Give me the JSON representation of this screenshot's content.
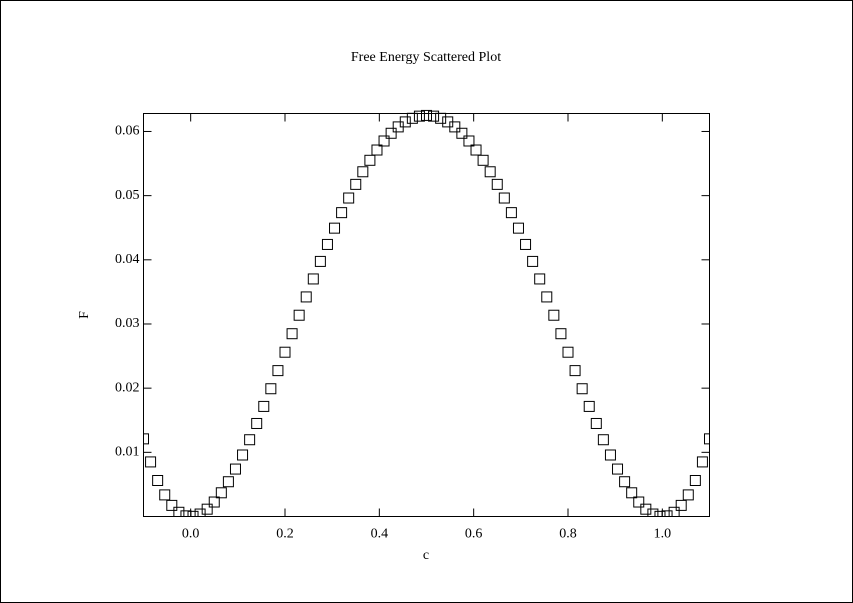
{
  "chart_data": {
    "type": "scatter",
    "title": "Free Energy Scattered Plot",
    "x_label": "c",
    "y_label": "F",
    "series": [
      {
        "name": "F",
        "color": "#000000",
        "x": [
          -0.1,
          -0.085,
          -0.07,
          -0.055,
          -0.04,
          -0.025,
          -0.01,
          0.005,
          0.02,
          0.035,
          0.05,
          0.065,
          0.08,
          0.095,
          0.11,
          0.125,
          0.14,
          0.155,
          0.17,
          0.185,
          0.2,
          0.215,
          0.23,
          0.245,
          0.26,
          0.275,
          0.29,
          0.305,
          0.32,
          0.335,
          0.35,
          0.365,
          0.38,
          0.395,
          0.41,
          0.425,
          0.44,
          0.455,
          0.47,
          0.485,
          0.5,
          0.515,
          0.53,
          0.545,
          0.56,
          0.575,
          0.59,
          0.605,
          0.62,
          0.635,
          0.65,
          0.665,
          0.68,
          0.695,
          0.71,
          0.725,
          0.74,
          0.755,
          0.77,
          0.785,
          0.8,
          0.815,
          0.83,
          0.845,
          0.86,
          0.875,
          0.89,
          0.905,
          0.92,
          0.935,
          0.95,
          0.965,
          0.98,
          0.995,
          1.01,
          1.025,
          1.04,
          1.055,
          1.07,
          1.085,
          1.1
        ],
        "values": [
          0.0121,
          0.008505,
          0.00561,
          0.003367,
          0.001731,
          0.000657,
          0.000102,
          2.48e-05,
          0.000384,
          0.001141,
          0.002256,
          0.003694,
          0.005417,
          0.007392,
          0.009584,
          0.011963,
          0.014496,
          0.017154,
          0.019909,
          0.022733,
          0.0256,
          0.028485,
          0.031364,
          0.034216,
          0.037018,
          0.03975,
          0.042395,
          0.044933,
          0.04735,
          0.049629,
          0.051756,
          0.05372,
          0.055507,
          0.057109,
          0.058516,
          0.059719,
          0.060713,
          0.061492,
          0.062051,
          0.062388,
          0.0625,
          0.062388,
          0.062051,
          0.061492,
          0.060713,
          0.059719,
          0.058516,
          0.057109,
          0.055507,
          0.05372,
          0.051756,
          0.049629,
          0.04735,
          0.044933,
          0.042395,
          0.03975,
          0.037018,
          0.034216,
          0.031364,
          0.028485,
          0.0256,
          0.022733,
          0.019909,
          0.017154,
          0.014496,
          0.011963,
          0.009584,
          0.007392,
          0.005417,
          0.003694,
          0.002256,
          0.001141,
          0.000384,
          2.48e-05,
          0.000102,
          0.000657,
          0.001731,
          0.003367,
          0.00561,
          0.008505,
          0.0121
        ]
      }
    ],
    "xlim": [
      -0.1,
      1.1
    ],
    "ylim": [
      0,
      0.0628
    ],
    "xticks": [
      {
        "value": 0,
        "label": "0.0"
      },
      0.2,
      0.4,
      0.6,
      0.8,
      {
        "value": 1,
        "label": "1.0"
      }
    ],
    "yticks": [
      0.01,
      0.02,
      0.03,
      0.04,
      0.05,
      0.06
    ],
    "grid": false,
    "marker": "square"
  }
}
